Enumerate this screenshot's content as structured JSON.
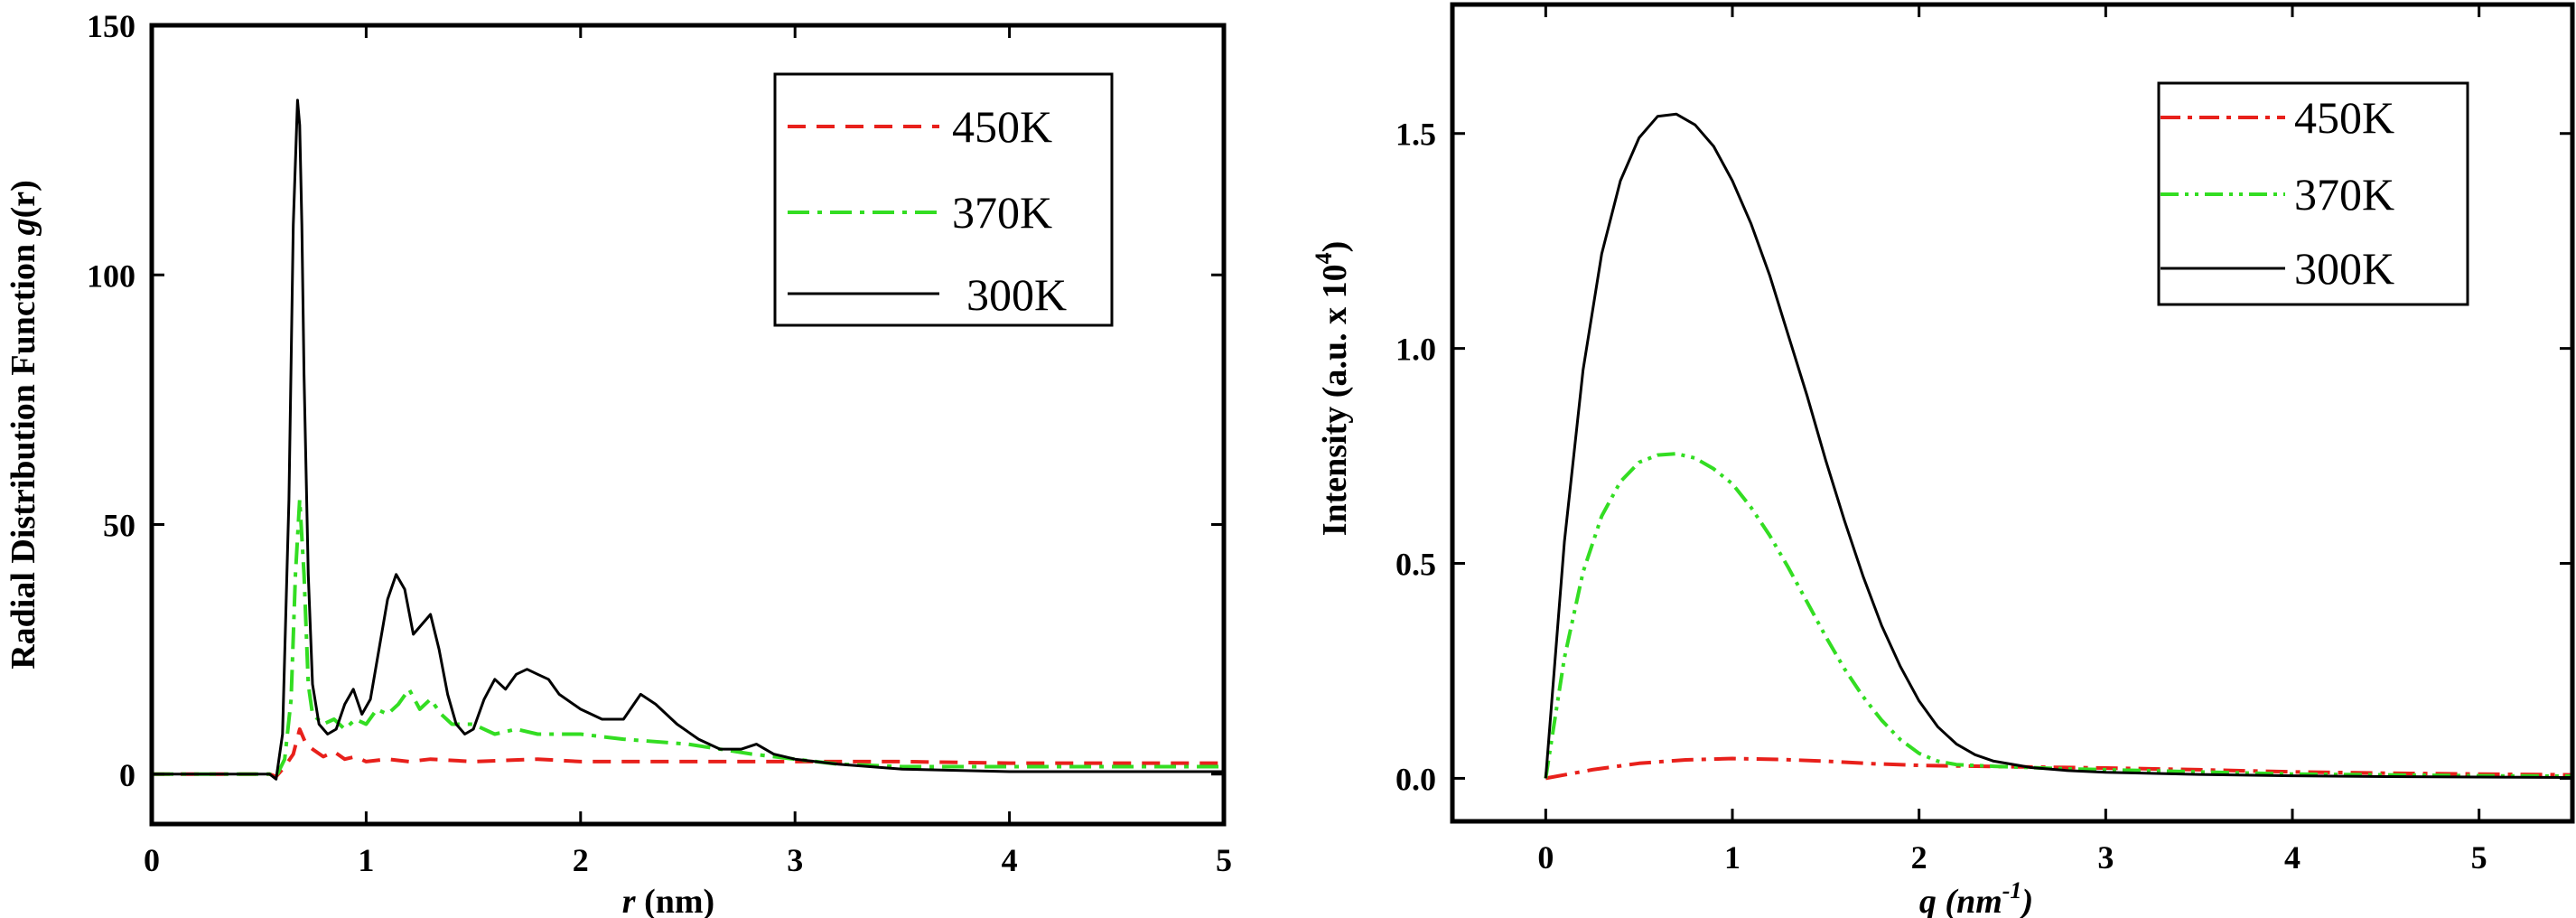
{
  "colors": {
    "450K": "#e8201b",
    "370K": "#33dd22",
    "300K": "#000000"
  },
  "chart_data": [
    {
      "type": "line",
      "title": "",
      "xlabel_var": "r",
      "xlabel_unit": " (nm)",
      "ylabel_prefix": "Radial Distribution Function ",
      "ylabel_var": "g",
      "ylabel_suffix": "(r)",
      "xlim": [
        0,
        5
      ],
      "ylim": [
        -10,
        150
      ],
      "xticks": [
        0,
        1,
        2,
        3,
        4,
        5
      ],
      "xtick_labels": [
        "0",
        "1",
        "2",
        "3",
        "4",
        "5"
      ],
      "yticks": [
        0,
        50,
        100,
        150
      ],
      "ytick_labels": [
        "0",
        "50",
        "100",
        "150"
      ],
      "legend_position": "top-right",
      "series": [
        {
          "name": "450K",
          "color_key": "450K",
          "dash": "dashed",
          "x": [
            0,
            0.55,
            0.58,
            0.62,
            0.66,
            0.69,
            0.72,
            0.75,
            0.8,
            0.85,
            0.9,
            0.95,
            1.0,
            1.1,
            1.2,
            1.3,
            1.5,
            1.8,
            2.0,
            2.5,
            3.0,
            3.5,
            4.0,
            4.5,
            5.0
          ],
          "y": [
            0,
            0,
            -0.5,
            1.5,
            4,
            9,
            6,
            5,
            3.5,
            4.5,
            3,
            3.5,
            2.5,
            3,
            2.5,
            3,
            2.5,
            3,
            2.5,
            2.5,
            2.5,
            2.5,
            2.2,
            2.2,
            2.2
          ]
        },
        {
          "name": "370K",
          "color_key": "370K",
          "dash": "dashdot",
          "x": [
            0,
            0.55,
            0.58,
            0.62,
            0.65,
            0.67,
            0.69,
            0.71,
            0.73,
            0.75,
            0.8,
            0.85,
            0.9,
            0.95,
            1.0,
            1.05,
            1.1,
            1.15,
            1.2,
            1.25,
            1.3,
            1.35,
            1.4,
            1.5,
            1.6,
            1.7,
            1.8,
            1.9,
            2.0,
            2.2,
            2.5,
            2.8,
            3.0,
            3.2,
            3.5,
            4.0,
            4.5,
            5.0
          ],
          "y": [
            0,
            0,
            -0.5,
            3,
            15,
            40,
            55,
            40,
            18,
            12,
            10,
            11,
            9,
            11,
            10,
            13,
            12,
            14,
            17,
            13,
            15,
            12,
            10,
            10,
            8,
            9,
            8,
            8,
            8,
            7,
            6,
            4,
            3,
            2,
            1.5,
            1.5,
            1.5,
            1.5
          ]
        },
        {
          "name": "300K",
          "color_key": "300K",
          "dash": "solid",
          "x": [
            0,
            0.55,
            0.58,
            0.61,
            0.64,
            0.66,
            0.68,
            0.69,
            0.7,
            0.71,
            0.73,
            0.75,
            0.78,
            0.82,
            0.86,
            0.9,
            0.94,
            0.98,
            1.02,
            1.06,
            1.1,
            1.14,
            1.18,
            1.22,
            1.26,
            1.3,
            1.34,
            1.38,
            1.42,
            1.46,
            1.5,
            1.55,
            1.6,
            1.65,
            1.7,
            1.75,
            1.8,
            1.85,
            1.9,
            2.0,
            2.1,
            2.2,
            2.28,
            2.35,
            2.45,
            2.55,
            2.65,
            2.75,
            2.82,
            2.9,
            3.0,
            3.2,
            3.5,
            4.0,
            4.5,
            5.0
          ],
          "y": [
            0,
            0,
            -1,
            8,
            55,
            110,
            135,
            130,
            110,
            80,
            40,
            18,
            10,
            8,
            9,
            14,
            17,
            12,
            15,
            25,
            35,
            40,
            37,
            28,
            30,
            32,
            25,
            16,
            10,
            8,
            9,
            15,
            19,
            17,
            20,
            21,
            20,
            19,
            16,
            13,
            11,
            11,
            16,
            14,
            10,
            7,
            5,
            5,
            6,
            4,
            3,
            2,
            1,
            0.5,
            0.5,
            0.5
          ]
        }
      ]
    },
    {
      "type": "line",
      "title": "",
      "xlabel_var": "q",
      "xlabel_unit": "nm",
      "xlabel_sup": "-1",
      "ylabel_text": "Intensity (a.u. x 10",
      "ylabel_sup": "4",
      "ylabel_close": ")",
      "xlim": [
        -0.5,
        5.5
      ],
      "ylim": [
        -0.1,
        1.8
      ],
      "xticks": [
        0,
        1,
        2,
        3,
        4,
        5
      ],
      "xtick_labels": [
        "0",
        "1",
        "2",
        "3",
        "4",
        "5"
      ],
      "yticks": [
        0,
        0.5,
        1.0,
        1.5
      ],
      "ytick_labels": [
        "0.0",
        "0.5",
        "1.0",
        "1.5"
      ],
      "legend_position": "top-right",
      "series": [
        {
          "name": "450K",
          "color_key": "450K",
          "dash": "dashdot",
          "x": [
            0,
            0.25,
            0.5,
            0.75,
            1.0,
            1.25,
            1.5,
            1.75,
            2.0,
            2.5,
            3.0,
            3.5,
            4.0,
            4.5,
            5.0,
            5.5
          ],
          "y": [
            0,
            0.02,
            0.035,
            0.043,
            0.046,
            0.044,
            0.04,
            0.034,
            0.03,
            0.027,
            0.024,
            0.02,
            0.015,
            0.012,
            0.01,
            0.008
          ]
        },
        {
          "name": "370K",
          "color_key": "370K",
          "dash": "dashdotdot",
          "x": [
            0,
            0.1,
            0.2,
            0.3,
            0.4,
            0.5,
            0.6,
            0.7,
            0.8,
            0.9,
            1.0,
            1.1,
            1.2,
            1.3,
            1.4,
            1.5,
            1.6,
            1.7,
            1.8,
            1.9,
            2.0,
            2.1,
            2.2,
            2.4,
            2.6,
            2.8,
            3.0,
            3.5,
            4.0,
            4.5,
            5.0,
            5.5
          ],
          "y": [
            0,
            0.28,
            0.48,
            0.61,
            0.69,
            0.735,
            0.752,
            0.755,
            0.745,
            0.72,
            0.685,
            0.63,
            0.565,
            0.49,
            0.41,
            0.33,
            0.255,
            0.19,
            0.135,
            0.09,
            0.058,
            0.04,
            0.032,
            0.028,
            0.025,
            0.022,
            0.02,
            0.015,
            0.01,
            0.008,
            0.006,
            0.005
          ]
        },
        {
          "name": "300K",
          "color_key": "300K",
          "dash": "solid",
          "x": [
            0,
            0.1,
            0.2,
            0.3,
            0.4,
            0.5,
            0.6,
            0.7,
            0.8,
            0.9,
            1.0,
            1.1,
            1.2,
            1.3,
            1.4,
            1.5,
            1.6,
            1.7,
            1.8,
            1.9,
            2.0,
            2.1,
            2.2,
            2.3,
            2.4,
            2.6,
            2.8,
            3.0,
            3.5,
            4.0,
            4.5,
            5.0,
            5.5
          ],
          "y": [
            0,
            0.55,
            0.95,
            1.22,
            1.39,
            1.49,
            1.54,
            1.545,
            1.52,
            1.47,
            1.39,
            1.29,
            1.17,
            1.03,
            0.89,
            0.74,
            0.6,
            0.47,
            0.355,
            0.26,
            0.18,
            0.12,
            0.08,
            0.055,
            0.04,
            0.025,
            0.018,
            0.014,
            0.009,
            0.006,
            0.004,
            0.003,
            0.002
          ]
        }
      ]
    }
  ]
}
